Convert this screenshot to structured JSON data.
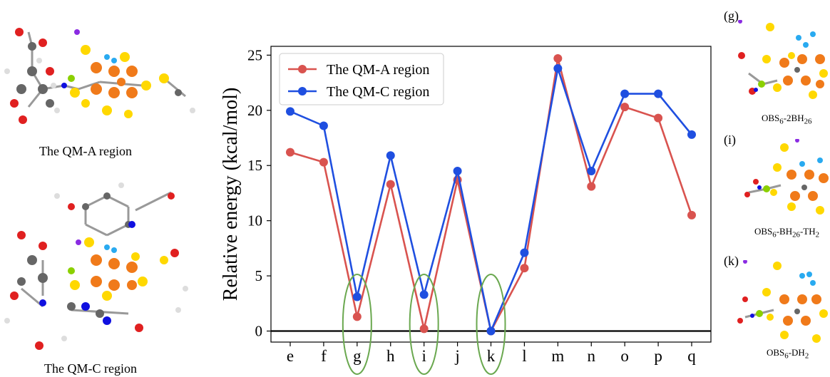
{
  "left_structures": {
    "qm_a_caption": "The QM-A region",
    "qm_c_caption": "The QM-C region"
  },
  "right_structures": {
    "g": {
      "letter": "(g)",
      "label": "OBS6-2BH26",
      "label_main": "OBS",
      "sub1": "6",
      "label_mid": "-2BH",
      "sub2": "26"
    },
    "i": {
      "letter": "(i)",
      "label": "OBS6-BH26-TH2",
      "label_main": "OBS",
      "sub1": "6",
      "label_mid": "-BH",
      "sub2": "26",
      "label_tail": "-TH",
      "sub3": "2"
    },
    "k": {
      "letter": "(k)",
      "label": "OBS6-DH2",
      "label_main": "OBS",
      "sub1": "6",
      "label_mid": "-DH",
      "sub2": "2"
    }
  },
  "chart_data": {
    "type": "line",
    "title": "",
    "xlabel": "",
    "ylabel": "Relative energy (kcal/mol)",
    "ylim": [
      -1,
      25.8
    ],
    "yticks": [
      0,
      5,
      10,
      15,
      20,
      25
    ],
    "categories": [
      "e",
      "f",
      "g",
      "h",
      "i",
      "j",
      "k",
      "l",
      "m",
      "n",
      "o",
      "p",
      "q"
    ],
    "series": [
      {
        "name": "The QM-A region",
        "color": "#d9534f",
        "values": [
          16.2,
          15.3,
          1.3,
          13.3,
          0.2,
          13.7,
          0.0,
          5.7,
          24.7,
          13.1,
          20.3,
          19.3,
          10.5
        ]
      },
      {
        "name": "The QM-C region",
        "color": "#1f4fe0",
        "values": [
          19.9,
          18.6,
          3.1,
          15.9,
          3.3,
          14.5,
          0.0,
          7.1,
          23.8,
          14.5,
          21.5,
          21.5,
          17.8
        ]
      }
    ],
    "highlighted_categories": [
      "g",
      "i",
      "k"
    ],
    "highlight_color": "#6aa84f",
    "legend_position": "top-left",
    "zero_line": true
  }
}
